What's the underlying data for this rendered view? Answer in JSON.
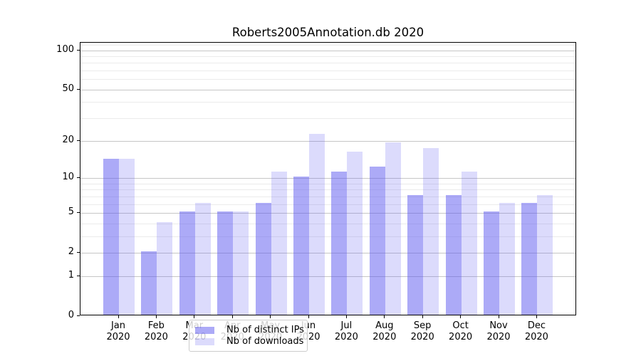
{
  "title": "Roberts2005Annotation.db 2020",
  "colors": {
    "ips_bar": "rgba(90,85,240,0.50)",
    "downloads_bar": "rgba(90,85,240,0.21)",
    "grid_major": "#c6c6c6",
    "grid_minor": "#ebebeb",
    "axis": "#000000",
    "legend_border": "#cccccc"
  },
  "chart_data": {
    "type": "bar",
    "title": "Roberts2005Annotation.db 2020",
    "categories": [
      "Jan",
      "Feb",
      "Mar",
      "Apr",
      "May",
      "Jun",
      "Jul",
      "Aug",
      "Sep",
      "Oct",
      "Nov",
      "Dec"
    ],
    "year": "2020",
    "series": [
      {
        "name": "Nb of distinct IPs",
        "values": [
          14,
          2,
          5,
          5,
          6,
          10,
          11,
          12,
          7,
          7,
          5,
          6
        ]
      },
      {
        "name": "Nb of downloads",
        "values": [
          14,
          4,
          6,
          5,
          11,
          22,
          16,
          19,
          17,
          11,
          6,
          7
        ]
      }
    ],
    "xlabel": "",
    "ylabel": "",
    "yticks": [
      0,
      1,
      2,
      5,
      10,
      20,
      50,
      100
    ],
    "minor_gridline_values": [
      3,
      4,
      6,
      7,
      8,
      9,
      30,
      40,
      60,
      70,
      80,
      90,
      110
    ],
    "ylim": [
      0,
      114
    ],
    "yscale": "log(1+v)",
    "grid": true,
    "legend_position": "lower center"
  }
}
